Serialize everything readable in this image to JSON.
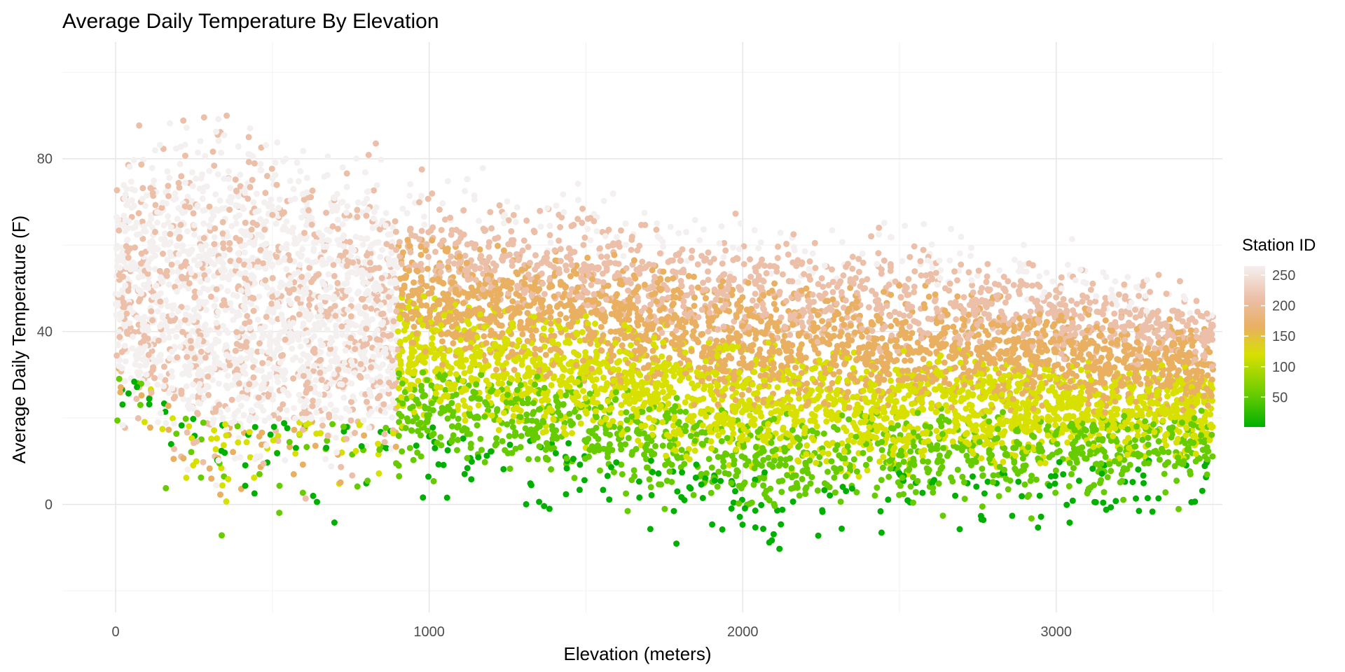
{
  "chart_data": {
    "type": "scatter",
    "title": "Average Daily Temperature By Elevation",
    "xlabel": "Elevation (meters)",
    "ylabel": "Average Daily Temperature (F)",
    "xlim": [
      -170,
      3530
    ],
    "ylim": [
      -25,
      107
    ],
    "x_ticks": [
      0,
      1000,
      2000,
      3000
    ],
    "y_ticks": [
      0,
      40,
      80
    ],
    "x_minor": [
      500,
      1500,
      2500,
      3500
    ],
    "y_minor": [
      -20,
      20,
      60,
      100
    ],
    "grid": true,
    "legend": {
      "title": "Station ID",
      "placement": "right",
      "range": [
        1,
        265
      ],
      "ticks": [
        50,
        100,
        150,
        200,
        250
      ],
      "colors": [
        "#00b000",
        "#66cc00",
        "#d8e000",
        "#e8b060",
        "#ecbfa8",
        "#f4f0f0"
      ]
    },
    "envelope": [
      {
        "x": 0,
        "low": 10,
        "high": 90
      },
      {
        "x": 300,
        "low": -15,
        "high": 105
      },
      {
        "x": 1000,
        "low": -5,
        "high": 85
      },
      {
        "x": 1500,
        "low": -8,
        "high": 80
      },
      {
        "x": 2000,
        "low": -18,
        "high": 77
      },
      {
        "x": 2500,
        "low": -14,
        "high": 72
      },
      {
        "x": 3000,
        "low": -10,
        "high": 66
      },
      {
        "x": 3500,
        "low": -5,
        "high": 57
      }
    ]
  }
}
